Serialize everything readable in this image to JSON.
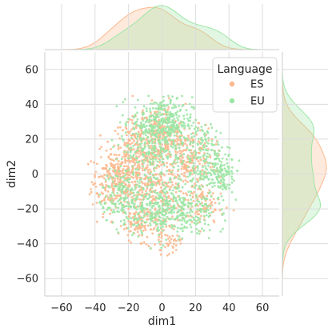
{
  "chart_data": {
    "type": "scatter",
    "subtype": "jointplot-with-kde-marginals",
    "xlabel": "dim1",
    "ylabel": "dim2",
    "xlim": [
      -70,
      70
    ],
    "ylim": [
      -70,
      70
    ],
    "x_ticks": [
      -60,
      -40,
      -20,
      0,
      20,
      40,
      60
    ],
    "y_ticks": [
      -60,
      -40,
      -20,
      0,
      20,
      40,
      60
    ],
    "grid": true,
    "legend": {
      "title": "Language",
      "placement": "top-right"
    },
    "series": [
      {
        "name": "ES",
        "color": "#fcb98e",
        "clusters": [
          {
            "cx": -28,
            "cy": -4,
            "sx": 7,
            "sy": 9,
            "n": 230
          },
          {
            "cx": -14,
            "cy": 12,
            "sx": 8,
            "sy": 10,
            "n": 260
          },
          {
            "cx": 0,
            "cy": 22,
            "sx": 7,
            "sy": 9,
            "n": 200
          },
          {
            "cx": 15,
            "cy": 10,
            "sx": 8,
            "sy": 9,
            "n": 210
          },
          {
            "cx": -2,
            "cy": -10,
            "sx": 13,
            "sy": 10,
            "n": 260
          },
          {
            "cx": -12,
            "cy": -28,
            "sx": 7,
            "sy": 5,
            "n": 110
          },
          {
            "cx": 25,
            "cy": -18,
            "sx": 6,
            "sy": 7,
            "n": 90
          },
          {
            "cx": 3,
            "cy": -40,
            "sx": 4,
            "sy": 3,
            "n": 40
          }
        ],
        "marginal_x_peak": -10,
        "marginal_y_peak": 2
      },
      {
        "name": "EU",
        "color": "#9ce6a5",
        "clusters": [
          {
            "cx": 0,
            "cy": 30,
            "sx": 9,
            "sy": 7,
            "n": 340
          },
          {
            "cx": -6,
            "cy": 12,
            "sx": 10,
            "sy": 9,
            "n": 200
          },
          {
            "cx": 25,
            "cy": 8,
            "sx": 8,
            "sy": 10,
            "n": 230
          },
          {
            "cx": 35,
            "cy": -2,
            "sx": 4,
            "sy": 5,
            "n": 80
          },
          {
            "cx": -8,
            "cy": -18,
            "sx": 12,
            "sy": 8,
            "n": 300
          },
          {
            "cx": 12,
            "cy": -22,
            "sx": 10,
            "sy": 8,
            "n": 200
          },
          {
            "cx": -25,
            "cy": -10,
            "sx": 6,
            "sy": 7,
            "n": 80
          }
        ],
        "marginal_x_peak": 0,
        "marginal_y_peak": 28
      }
    ]
  }
}
